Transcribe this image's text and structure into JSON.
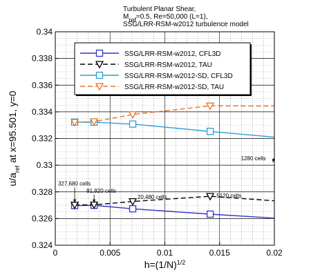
{
  "chart_data": {
    "type": "line",
    "title_lines": [
      {
        "parts": [
          {
            "t": "Turbulent Planar Shear,"
          }
        ]
      },
      {
        "parts": [
          {
            "t": "M"
          },
          {
            "t": "ref",
            "sub": true
          },
          {
            "t": "=0.5, Re=50,000 (L=1),"
          }
        ]
      },
      {
        "parts": [
          {
            "t": "SSG/LRR-RSM-w2012 turbulence model"
          }
        ]
      }
    ],
    "xlabel": {
      "parts": [
        {
          "t": "h=(1/N)"
        },
        {
          "t": "1/2",
          "sup": true
        }
      ]
    },
    "ylabel": {
      "parts": [
        {
          "t": "u/a"
        },
        {
          "t": "ref",
          "sub": true
        },
        {
          "t": " at x=95.501, y=0"
        }
      ]
    },
    "xlim": [
      0,
      0.02
    ],
    "ylim": [
      0.324,
      0.34
    ],
    "xticks": [
      0,
      0.005,
      0.01,
      0.015,
      0.02
    ],
    "xtick_labels": [
      "0",
      "0.005",
      "0.01",
      "0.015",
      "0.02"
    ],
    "yticks": [
      0.324,
      0.326,
      0.328,
      0.33,
      0.332,
      0.334,
      0.336,
      0.338,
      0.34
    ],
    "ytick_labels": [
      "0.324",
      "0.326",
      "0.328",
      "0.33",
      "0.332",
      "0.334",
      "0.336",
      "0.338",
      "0.34"
    ],
    "grid": true,
    "legend_position": "top-center",
    "series": [
      {
        "name": "SSG/LRR-RSM-w2012, CFL3D",
        "color": "#3333cc",
        "dash": "solid",
        "marker": "square",
        "x": [
          0.00177,
          0.00354,
          0.00707,
          0.01414
        ],
        "y": [
          0.32697,
          0.32699,
          0.32673,
          0.32633
        ],
        "line_x": [
          0.00177,
          0.00354,
          0.00707,
          0.01414,
          0.02
        ],
        "line_y": [
          0.32697,
          0.32699,
          0.32673,
          0.32633,
          0.32603
        ]
      },
      {
        "name": "SSG/LRR-RSM-w2012, TAU",
        "color": "#000000",
        "dash": "dashed",
        "marker": "triangle-down",
        "x": [
          0.00177,
          0.00354,
          0.00707,
          0.01414
        ],
        "y": [
          0.32702,
          0.32703,
          0.32728,
          0.32767
        ],
        "line_x": [
          0.00177,
          0.00354,
          0.00707,
          0.01414,
          0.02
        ],
        "line_y": [
          0.32702,
          0.32703,
          0.32728,
          0.32767,
          0.32733
        ]
      },
      {
        "name": "SSG/LRR-RSM-w2012-SD, CFL3D",
        "color": "#2b9fd4",
        "dash": "solid",
        "marker": "square",
        "x": [
          0.00177,
          0.00354,
          0.00707,
          0.01414
        ],
        "y": [
          0.33323,
          0.33322,
          0.33308,
          0.33253
        ],
        "line_x": [
          0.00177,
          0.00354,
          0.00707,
          0.01414,
          0.02
        ],
        "line_y": [
          0.33323,
          0.33322,
          0.33308,
          0.33253,
          0.3321
        ]
      },
      {
        "name": "SSG/LRR-RSM-w2012-SD, TAU",
        "color": "#e8742a",
        "dash": "dashed",
        "marker": "triangle-down",
        "x": [
          0.00177,
          0.00354,
          0.00707,
          0.01414
        ],
        "y": [
          0.33322,
          0.33327,
          0.3338,
          0.33445
        ],
        "line_x": [
          0.00177,
          0.00354,
          0.00707,
          0.01414,
          0.02
        ],
        "line_y": [
          0.33322,
          0.33327,
          0.3338,
          0.33445,
          0.33443
        ]
      }
    ],
    "annotations": [
      {
        "text": "327,680 cells",
        "x": 0.00025,
        "y": 0.32849,
        "arrow_to": [
          0.00177,
          0.3272
        ]
      },
      {
        "text": "81,920 cells",
        "x": 0.00285,
        "y": 0.32794,
        "arrow_to": [
          0.00354,
          0.3272
        ]
      },
      {
        "text": "20,480 cells",
        "x": 0.0075,
        "y": 0.32748,
        "arrow_to": null
      },
      {
        "text": "5120 cells",
        "x": 0.01472,
        "y": 0.32758,
        "arrow_to": null
      },
      {
        "text": "1280 cells",
        "x": 0.01695,
        "y": 0.33037,
        "arrow_to": [
          0.01985,
          0.33023
        ]
      }
    ]
  }
}
